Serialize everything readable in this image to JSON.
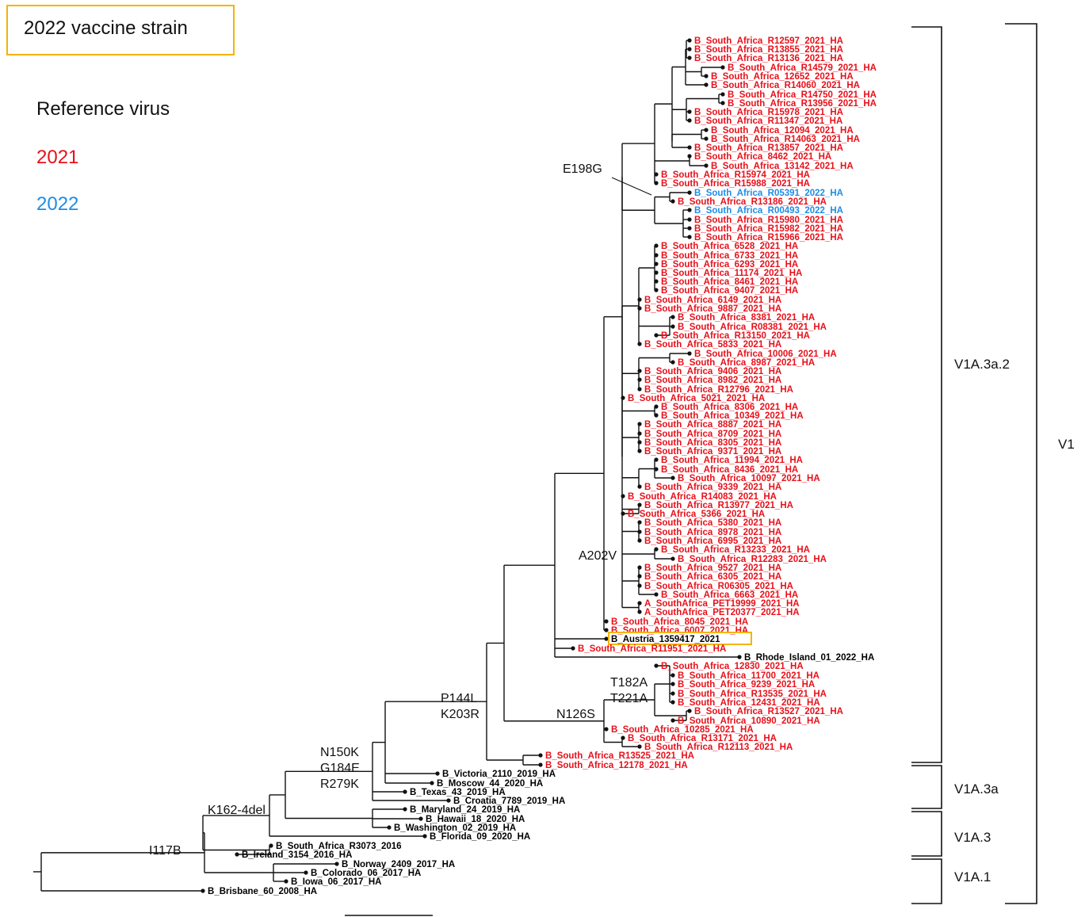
{
  "legend": {
    "vaccine_strain_label": "2022 vaccine strain",
    "reference_label": "Reference virus",
    "year_2021_label": "2021",
    "year_2022_label": "2022"
  },
  "colors": {
    "reference": "#000000",
    "year_2021": "#e8101a",
    "year_2022": "#1f8ce6",
    "vaccine_box": "#f4b400"
  },
  "mutations": [
    "E198G",
    "A202V",
    "T182A",
    "T221A",
    "N126S",
    "P144L",
    "K203R",
    "N150K",
    "G184E",
    "R279K",
    "K162-4del",
    "I117B"
  ],
  "clades": [
    "V1A.3a.2",
    "V1A.3a",
    "V1A.3",
    "V1A.1",
    "V1"
  ],
  "taxa": [
    {
      "name": "B_South_Africa_R12597_2021_HA",
      "group": "2021"
    },
    {
      "name": "B_South_Africa_R13855_2021_HA",
      "group": "2021"
    },
    {
      "name": "B_South_Africa_R13136_2021_HA",
      "group": "2021"
    },
    {
      "name": "B_South_Africa_R14579_2021_HA",
      "group": "2021"
    },
    {
      "name": "B_South_Africa_12652_2021_HA",
      "group": "2021"
    },
    {
      "name": "B_South_Africa_R14060_2021_HA",
      "group": "2021"
    },
    {
      "name": "B_South_Africa_R14750_2021_HA",
      "group": "2021"
    },
    {
      "name": "B_South_Africa_R13956_2021_HA",
      "group": "2021"
    },
    {
      "name": "B_South_Africa_R15978_2021_HA",
      "group": "2021"
    },
    {
      "name": "B_South_Africa_R11347_2021_HA",
      "group": "2021"
    },
    {
      "name": "B_South_Africa_12094_2021_HA",
      "group": "2021"
    },
    {
      "name": "B_South_Africa_R14063_2021_HA",
      "group": "2021"
    },
    {
      "name": "B_South_Africa_R13857_2021_HA",
      "group": "2021"
    },
    {
      "name": "B_South_Africa_8462_2021_HA",
      "group": "2021"
    },
    {
      "name": "B_South_Africa_13142_2021_HA",
      "group": "2021"
    },
    {
      "name": "B_South_Africa_R15974_2021_HA",
      "group": "2021"
    },
    {
      "name": "B_South_Africa_R15988_2021_HA",
      "group": "2021"
    },
    {
      "name": "B_South_Africa_R05391_2022_HA",
      "group": "2022"
    },
    {
      "name": "B_South_Africa_R13186_2021_HA",
      "group": "2021"
    },
    {
      "name": "B_South_Africa_R00493_2022_HA",
      "group": "2022"
    },
    {
      "name": "B_South_Africa_R15980_2021_HA",
      "group": "2021"
    },
    {
      "name": "B_South_Africa_R15982_2021_HA",
      "group": "2021"
    },
    {
      "name": "B_South_Africa_R15966_2021_HA",
      "group": "2021"
    },
    {
      "name": "B_South_Africa_6528_2021_HA",
      "group": "2021"
    },
    {
      "name": "B_South_Africa_6733_2021_HA",
      "group": "2021"
    },
    {
      "name": "B_South_Africa_6293_2021_HA",
      "group": "2021"
    },
    {
      "name": "B_South_Africa_11174_2021_HA",
      "group": "2021"
    },
    {
      "name": "B_South_Africa_8461_2021_HA",
      "group": "2021"
    },
    {
      "name": "B_South_Africa_9407_2021_HA",
      "group": "2021"
    },
    {
      "name": "B_South_Africa_6149_2021_HA",
      "group": "2021"
    },
    {
      "name": "B_South_Africa_9887_2021_HA",
      "group": "2021"
    },
    {
      "name": "B_South_Africa_8381_2021_HA",
      "group": "2021"
    },
    {
      "name": "B_South_Africa_R08381_2021_HA",
      "group": "2021"
    },
    {
      "name": "B_South_Africa_R13150_2021_HA",
      "group": "2021"
    },
    {
      "name": "B_South_Africa_5833_2021_HA",
      "group": "2021"
    },
    {
      "name": "B_South_Africa_10006_2021_HA",
      "group": "2021"
    },
    {
      "name": "B_South_Africa_8987_2021_HA",
      "group": "2021"
    },
    {
      "name": "B_South_Africa_9406_2021_HA",
      "group": "2021"
    },
    {
      "name": "B_South_Africa_8982_2021_HA",
      "group": "2021"
    },
    {
      "name": "B_South_Africa_R12796_2021_HA",
      "group": "2021"
    },
    {
      "name": "B_South_Africa_5021_2021_HA",
      "group": "2021"
    },
    {
      "name": "B_South_Africa_8306_2021_HA",
      "group": "2021"
    },
    {
      "name": "B_South_Africa_10349_2021_HA",
      "group": "2021"
    },
    {
      "name": "B_South_Africa_8887_2021_HA",
      "group": "2021"
    },
    {
      "name": "B_South_Africa_8709_2021_HA",
      "group": "2021"
    },
    {
      "name": "B_South_Africa_8305_2021_HA",
      "group": "2021"
    },
    {
      "name": "B_South_Africa_9371_2021_HA",
      "group": "2021"
    },
    {
      "name": "B_South_Africa_11994_2021_HA",
      "group": "2021"
    },
    {
      "name": "B_South_Africa_8436_2021_HA",
      "group": "2021"
    },
    {
      "name": "B_South_Africa_10097_2021_HA",
      "group": "2021"
    },
    {
      "name": "B_South_Africa_9339_2021_HA",
      "group": "2021"
    },
    {
      "name": "B_South_Africa_R14083_2021_HA",
      "group": "2021"
    },
    {
      "name": "B_South_Africa_R13977_2021_HA",
      "group": "2021"
    },
    {
      "name": "B_South_Africa_5366_2021_HA",
      "group": "2021"
    },
    {
      "name": "B_South_Africa_5380_2021_HA",
      "group": "2021"
    },
    {
      "name": "B_South_Africa_8978_2021_HA",
      "group": "2021"
    },
    {
      "name": "B_South_Africa_6995_2021_HA",
      "group": "2021"
    },
    {
      "name": "B_South_Africa_R13233_2021_HA",
      "group": "2021"
    },
    {
      "name": "B_South_Africa_R12283_2021_HA",
      "group": "2021"
    },
    {
      "name": "B_South_Africa_9527_2021_HA",
      "group": "2021"
    },
    {
      "name": "B_South_Africa_6305_2021_HA",
      "group": "2021"
    },
    {
      "name": "B_South_Africa_R06305_2021_HA",
      "group": "2021"
    },
    {
      "name": "B_South_Africa_6663_2021_HA",
      "group": "2021"
    },
    {
      "name": "A_SouthAfrica_PET19999_2021_HA",
      "group": "2021"
    },
    {
      "name": "A_SouthAfrica_PET20377_2021_HA",
      "group": "2021"
    },
    {
      "name": "B_South_Africa_8045_2021_HA",
      "group": "2021"
    },
    {
      "name": "B_South_Africa_6007_2021_HA",
      "group": "2021"
    },
    {
      "name": "B_Austria_1359417_2021",
      "group": "vaccine"
    },
    {
      "name": "B_South_Africa_R11951_2021_HA",
      "group": "2021"
    },
    {
      "name": "B_Rhode_Island_01_2022_HA",
      "group": "reference"
    },
    {
      "name": "B_South_Africa_12830_2021_HA",
      "group": "2021"
    },
    {
      "name": "B_South_Africa_11700_2021_HA",
      "group": "2021"
    },
    {
      "name": "B_South_Africa_9239_2021_HA",
      "group": "2021"
    },
    {
      "name": "B_South_Africa_R13535_2021_HA",
      "group": "2021"
    },
    {
      "name": "B_South_Africa_12431_2021_HA",
      "group": "2021"
    },
    {
      "name": "B_South_Africa_R13527_2021_HA",
      "group": "2021"
    },
    {
      "name": "B_South_Africa_10890_2021_HA",
      "group": "2021"
    },
    {
      "name": "B_South_Africa_10285_2021_HA",
      "group": "2021"
    },
    {
      "name": "B_South_Africa_R13171_2021_HA",
      "group": "2021"
    },
    {
      "name": "B_South_Africa_R12113_2021_HA",
      "group": "2021"
    },
    {
      "name": "B_South_Africa_R13525_2021_HA",
      "group": "2021"
    },
    {
      "name": "B_South_Africa_12178_2021_HA",
      "group": "2021"
    },
    {
      "name": "B_Victoria_2110_2019_HA",
      "group": "reference"
    },
    {
      "name": "B_Moscow_44_2020_HA",
      "group": "reference"
    },
    {
      "name": "B_Texas_43_2019_HA",
      "group": "reference"
    },
    {
      "name": "B_Croatia_7789_2019_HA",
      "group": "reference"
    },
    {
      "name": "B_Maryland_24_2019_HA",
      "group": "reference"
    },
    {
      "name": "B_Hawaii_18_2020_HA",
      "group": "reference"
    },
    {
      "name": "B_Washington_02_2019_HA",
      "group": "reference"
    },
    {
      "name": "B_Florida_09_2020_HA",
      "group": "reference"
    },
    {
      "name": "B_South_Africa_R3073_2016",
      "group": "reference"
    },
    {
      "name": "B_Ireland_3154_2016_HA",
      "group": "reference"
    },
    {
      "name": "B_Norway_2409_2017_HA",
      "group": "reference"
    },
    {
      "name": "B_Colorado_06_2017_HA",
      "group": "reference"
    },
    {
      "name": "B_Iowa_06_2017_HA",
      "group": "reference"
    },
    {
      "name": "B_Brisbane_60_2008_HA",
      "group": "reference"
    }
  ]
}
